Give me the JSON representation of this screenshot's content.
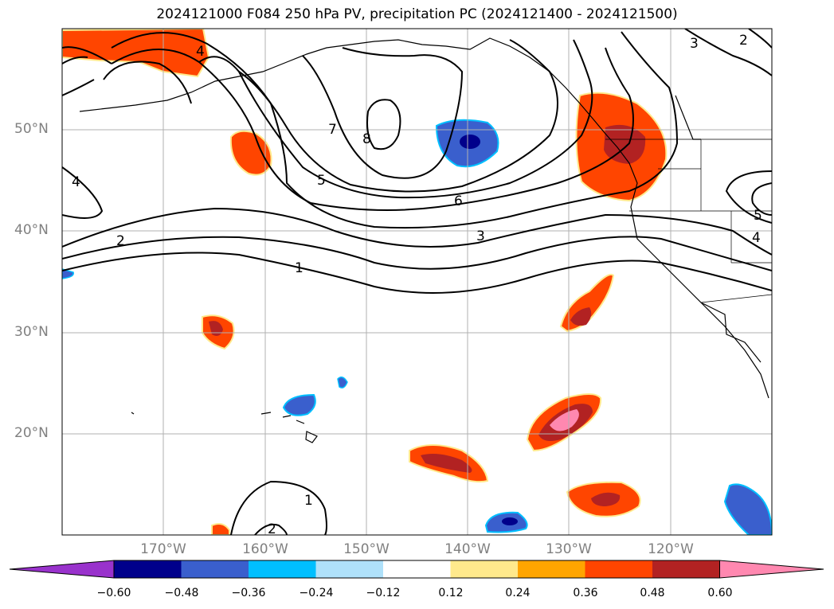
{
  "title": "2024121000 F084 250 hPa PV, precipitation PC (2024121400 - 2024121500)",
  "lat_labels": [
    "50°N",
    "40°N",
    "30°N",
    "20°N"
  ],
  "lon_labels": [
    "170°W",
    "160°W",
    "150°W",
    "140°W",
    "130°W",
    "120°W"
  ],
  "contour_labels": [
    "4",
    "7",
    "8",
    "5",
    "6",
    "3",
    "2",
    "1",
    "4",
    "3",
    "2",
    "5",
    "4",
    "1",
    "2"
  ],
  "colorbar": {
    "ticks": [
      "−0.60",
      "−0.48",
      "−0.36",
      "−0.24",
      "−0.12",
      "0.12",
      "0.24",
      "0.36",
      "0.48",
      "0.60"
    ],
    "colors": [
      "#9932cc",
      "#00008b",
      "#3a5fcd",
      "#00bfff",
      "#afe1fa",
      "#ffffff",
      "#ffe98c",
      "#ffa500",
      "#ff4500",
      "#b22222",
      "#ff88b0"
    ]
  },
  "fill_colors": {
    "blue_dark": "#00008b",
    "blue": "#3a5fcd",
    "cyan": "#00bfff",
    "orange": "#ff4500",
    "red": "#b22222",
    "pink": "#ff88b0",
    "yellow": "#ffe98c"
  }
}
